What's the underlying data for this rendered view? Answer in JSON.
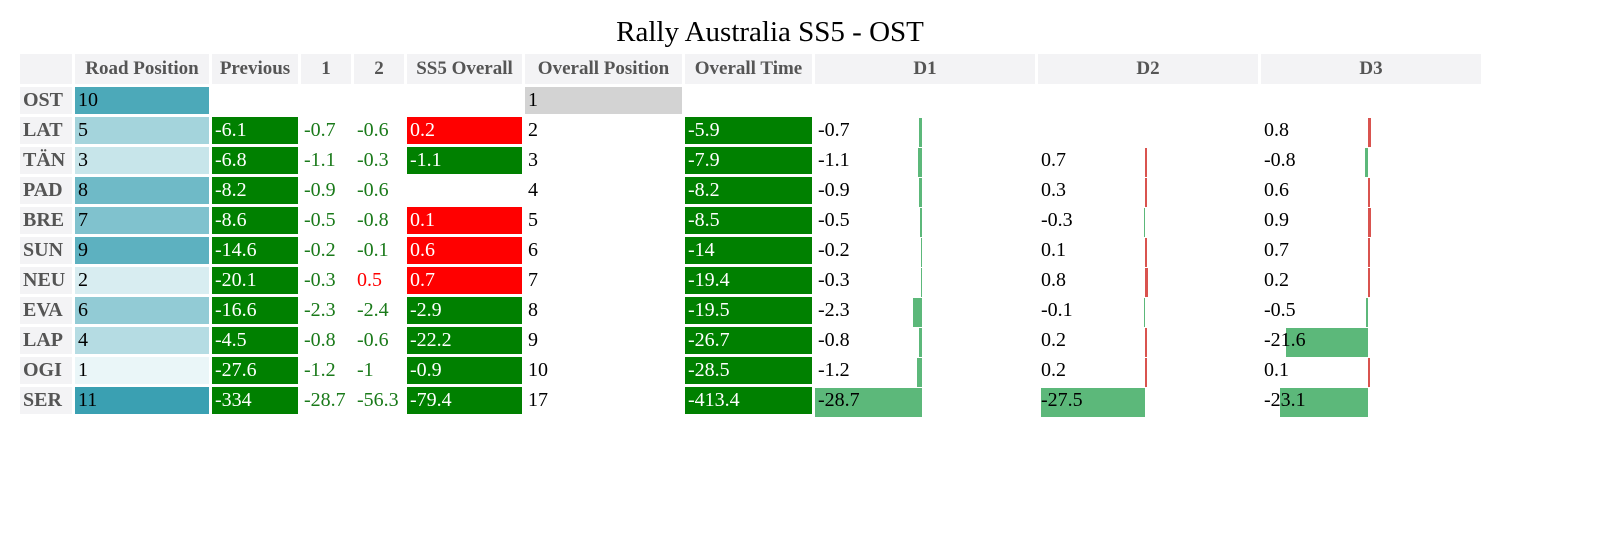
{
  "title": "Rally Australia SS5 - OST",
  "headers": [
    "",
    "Road Position",
    "Previous",
    "1",
    "2",
    "SS5 Overall",
    "Overall Position",
    "Overall Time",
    "D1",
    "D2",
    "D3"
  ],
  "rows": [
    {
      "driver": "OST",
      "road_position": "10",
      "road_shade": 10,
      "previous": "",
      "s1": "",
      "s2": "",
      "ss5_overall": "",
      "overall_position": "1",
      "overall_time": "",
      "d1": "",
      "d2": "",
      "d3": ""
    },
    {
      "driver": "LAT",
      "road_position": "5",
      "road_shade": 5,
      "previous": "-6.1",
      "s1": "-0.7",
      "s2": "-0.6",
      "ss5_overall": "0.2",
      "overall_position": "2",
      "overall_time": "-5.9",
      "d1": "-0.7",
      "d2": "",
      "d3": "0.8"
    },
    {
      "driver": "TÄN",
      "road_position": "3",
      "road_shade": 3,
      "previous": "-6.8",
      "s1": "-1.1",
      "s2": "-0.3",
      "ss5_overall": "-1.1",
      "overall_position": "3",
      "overall_time": "-7.9",
      "d1": "-1.1",
      "d2": "0.7",
      "d3": "-0.8"
    },
    {
      "driver": "PAD",
      "road_position": "8",
      "road_shade": 8,
      "previous": "-8.2",
      "s1": "-0.9",
      "s2": "-0.6",
      "ss5_overall": "",
      "overall_position": "4",
      "overall_time": "-8.2",
      "d1": "-0.9",
      "d2": "0.3",
      "d3": "0.6"
    },
    {
      "driver": "BRE",
      "road_position": "7",
      "road_shade": 7,
      "previous": "-8.6",
      "s1": "-0.5",
      "s2": "-0.8",
      "ss5_overall": "0.1",
      "overall_position": "5",
      "overall_time": "-8.5",
      "d1": "-0.5",
      "d2": "-0.3",
      "d3": "0.9"
    },
    {
      "driver": "SUN",
      "road_position": "9",
      "road_shade": 9,
      "previous": "-14.6",
      "s1": "-0.2",
      "s2": "-0.1",
      "ss5_overall": "0.6",
      "overall_position": "6",
      "overall_time": "-14",
      "d1": "-0.2",
      "d2": "0.1",
      "d3": "0.7"
    },
    {
      "driver": "NEU",
      "road_position": "2",
      "road_shade": 2,
      "previous": "-20.1",
      "s1": "-0.3",
      "s2": "0.5",
      "ss5_overall": "0.7",
      "overall_position": "7",
      "overall_time": "-19.4",
      "d1": "-0.3",
      "d2": "0.8",
      "d3": "0.2"
    },
    {
      "driver": "EVA",
      "road_position": "6",
      "road_shade": 6,
      "previous": "-16.6",
      "s1": "-2.3",
      "s2": "-2.4",
      "ss5_overall": "-2.9",
      "overall_position": "8",
      "overall_time": "-19.5",
      "d1": "-2.3",
      "d2": "-0.1",
      "d3": "-0.5"
    },
    {
      "driver": "LAP",
      "road_position": "4",
      "road_shade": 4,
      "previous": "-4.5",
      "s1": "-0.8",
      "s2": "-0.6",
      "ss5_overall": "-22.2",
      "overall_position": "9",
      "overall_time": "-26.7",
      "d1": "-0.8",
      "d2": "0.2",
      "d3": "-21.6"
    },
    {
      "driver": "OGI",
      "road_position": "1",
      "road_shade": 1,
      "previous": "-27.6",
      "s1": "-1.2",
      "s2": "-1",
      "ss5_overall": "-0.9",
      "overall_position": "10",
      "overall_time": "-28.5",
      "d1": "-1.2",
      "d2": "0.2",
      "d3": "0.1"
    },
    {
      "driver": "SER",
      "road_position": "11",
      "road_shade": 11,
      "previous": "-334",
      "s1": "-28.7",
      "s2": "-56.3",
      "ss5_overall": "-79.4",
      "overall_position": "17",
      "overall_time": "-413.4",
      "d1": "-28.7",
      "d2": "-27.5",
      "d3": "-23.1"
    }
  ],
  "colors": {
    "negative_bg": "#008000",
    "positive_bg": "#ff0000",
    "road_low": "#eaf6f8",
    "road_high": "#3aa0b2",
    "bar_negative": "#5cb87a",
    "bar_positive": "#d9534f",
    "leader_position_bg": "#d3d3d3"
  }
}
